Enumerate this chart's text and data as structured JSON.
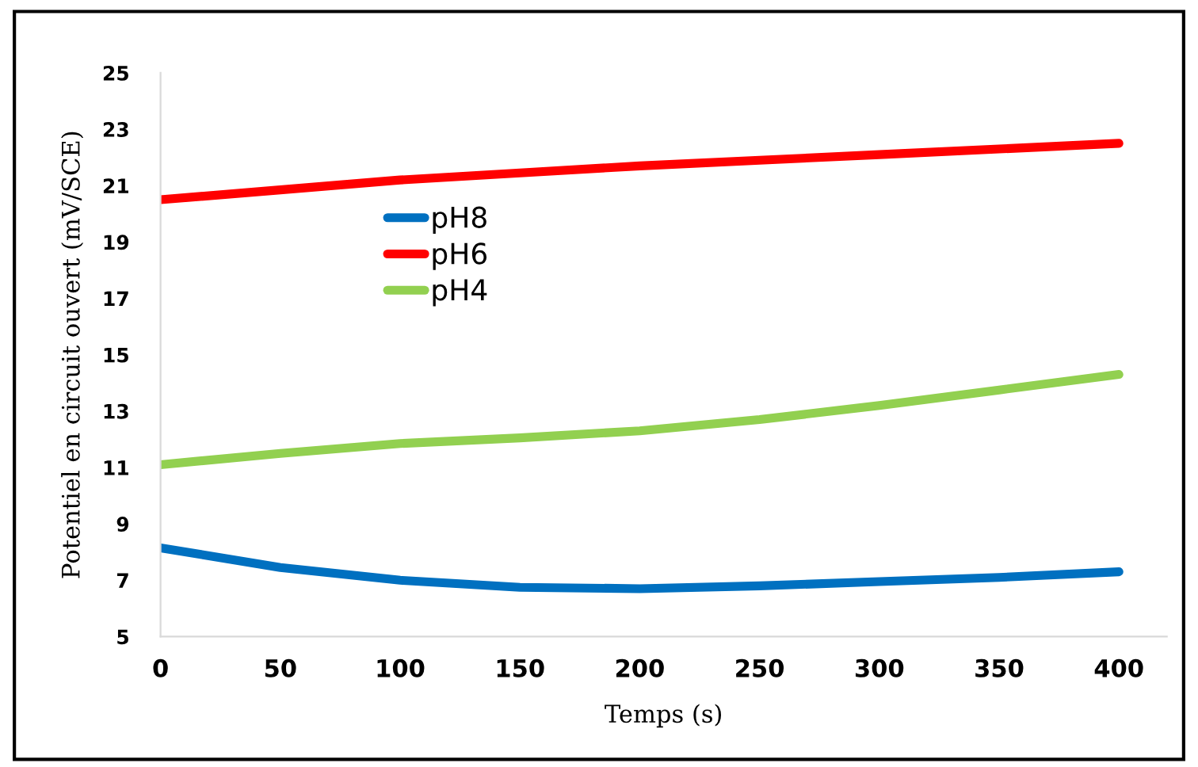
{
  "chart_data": {
    "type": "line",
    "xlabel": "Temps (s)",
    "ylabel": "Potentiel en circuit ouvert (mV/SCE)",
    "x": [
      0,
      50,
      100,
      150,
      200,
      250,
      300,
      350,
      400
    ],
    "series": [
      {
        "name": "pH8",
        "color": "#0070c0",
        "values": [
          8.15,
          7.45,
          7.0,
          6.75,
          6.7,
          6.8,
          6.95,
          7.1,
          7.3
        ]
      },
      {
        "name": "pH6",
        "color": "#ff0000",
        "values": [
          20.5,
          20.85,
          21.2,
          21.45,
          21.7,
          21.9,
          22.1,
          22.3,
          22.5
        ]
      },
      {
        "name": "pH4",
        "color": "#92d050",
        "values": [
          11.1,
          11.5,
          11.85,
          12.05,
          12.3,
          12.7,
          13.2,
          13.75,
          14.3
        ]
      }
    ],
    "xlim": [
      0,
      420
    ],
    "xticks": [
      0,
      50,
      100,
      150,
      200,
      250,
      300,
      350,
      400
    ],
    "ylim": [
      5,
      25
    ],
    "yticks": [
      5,
      7,
      9,
      11,
      13,
      15,
      17,
      19,
      21,
      23,
      25
    ],
    "grid": false,
    "legend": "center left",
    "marker": "none",
    "line_style": "solid"
  }
}
